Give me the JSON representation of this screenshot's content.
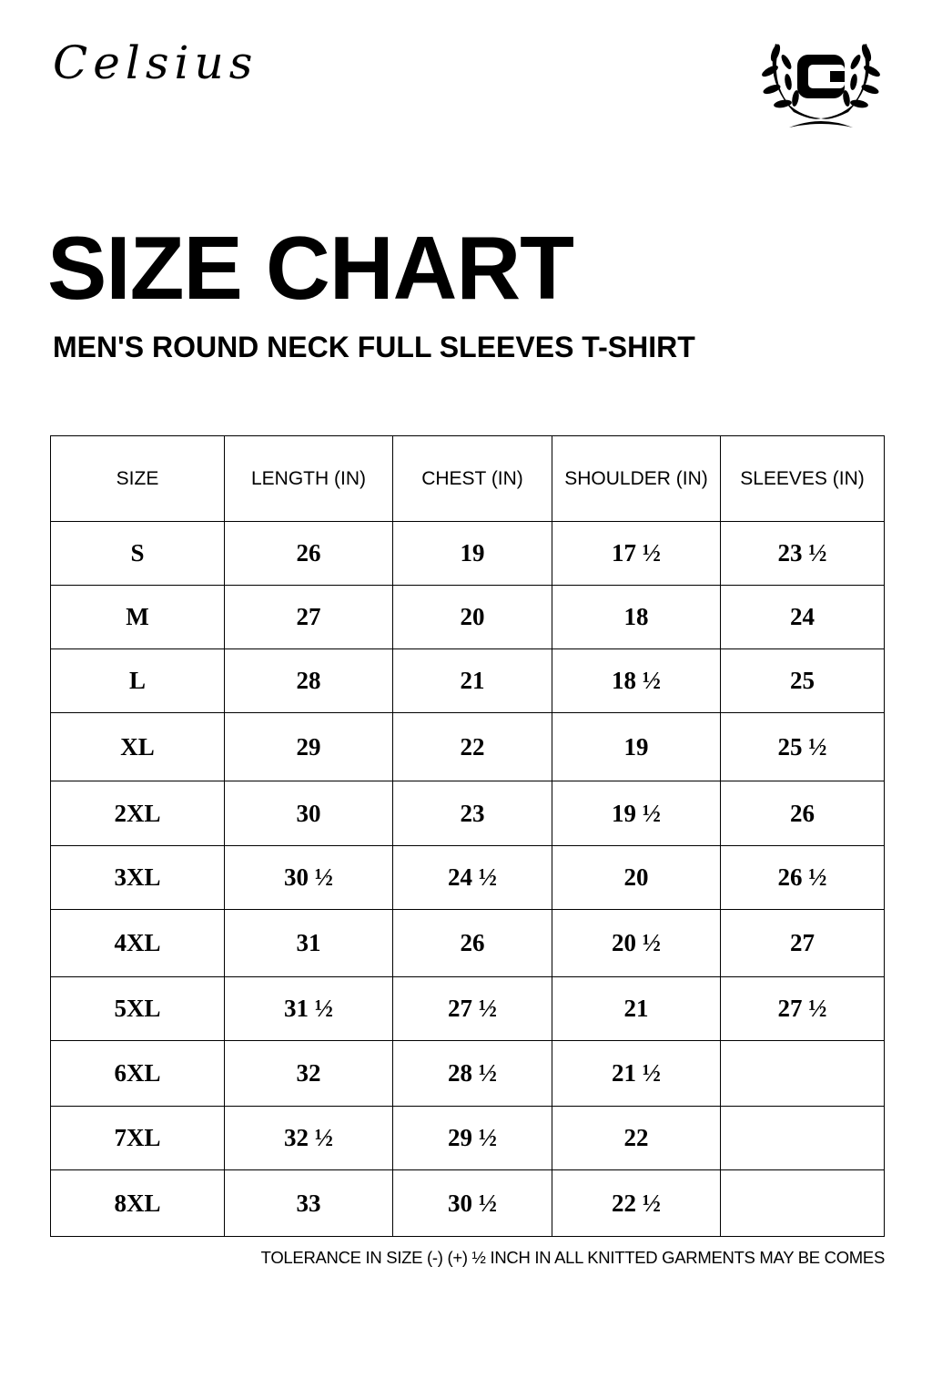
{
  "brand": "Celsius",
  "logo_letter": "C",
  "title": "SIZE CHART",
  "subtitle": "MEN'S ROUND NECK FULL SLEEVES T-SHIRT",
  "table": {
    "headers": [
      "SIZE",
      "LENGTH (IN)",
      "CHEST (IN)",
      "SHOULDER (IN)",
      "SLEEVES (IN)"
    ],
    "rows": [
      [
        "S",
        "26",
        "19",
        "17 ½",
        "23 ½"
      ],
      [
        "M",
        "27",
        "20",
        "18",
        "24"
      ],
      [
        "L",
        "28",
        "21",
        "18 ½",
        "25"
      ],
      [
        "XL",
        "29",
        "22",
        "19",
        "25 ½"
      ],
      [
        "2XL",
        "30",
        "23",
        "19 ½",
        "26"
      ],
      [
        "3XL",
        "30 ½",
        "24 ½",
        "20",
        "26 ½"
      ],
      [
        "4XL",
        "31",
        "26",
        "20 ½",
        "27"
      ],
      [
        "5XL",
        "31 ½",
        "27 ½",
        "21",
        "27 ½"
      ],
      [
        "6XL",
        "32",
        "28 ½",
        "21 ½",
        ""
      ],
      [
        "7XL",
        "32 ½",
        "29 ½",
        "22",
        ""
      ],
      [
        "8XL",
        "33",
        "30 ½",
        "22 ½",
        ""
      ]
    ]
  },
  "note": "TOLERANCE IN SIZE (-) (+) ½ INCH IN ALL KNITTED GARMENTS MAY BE COMES"
}
